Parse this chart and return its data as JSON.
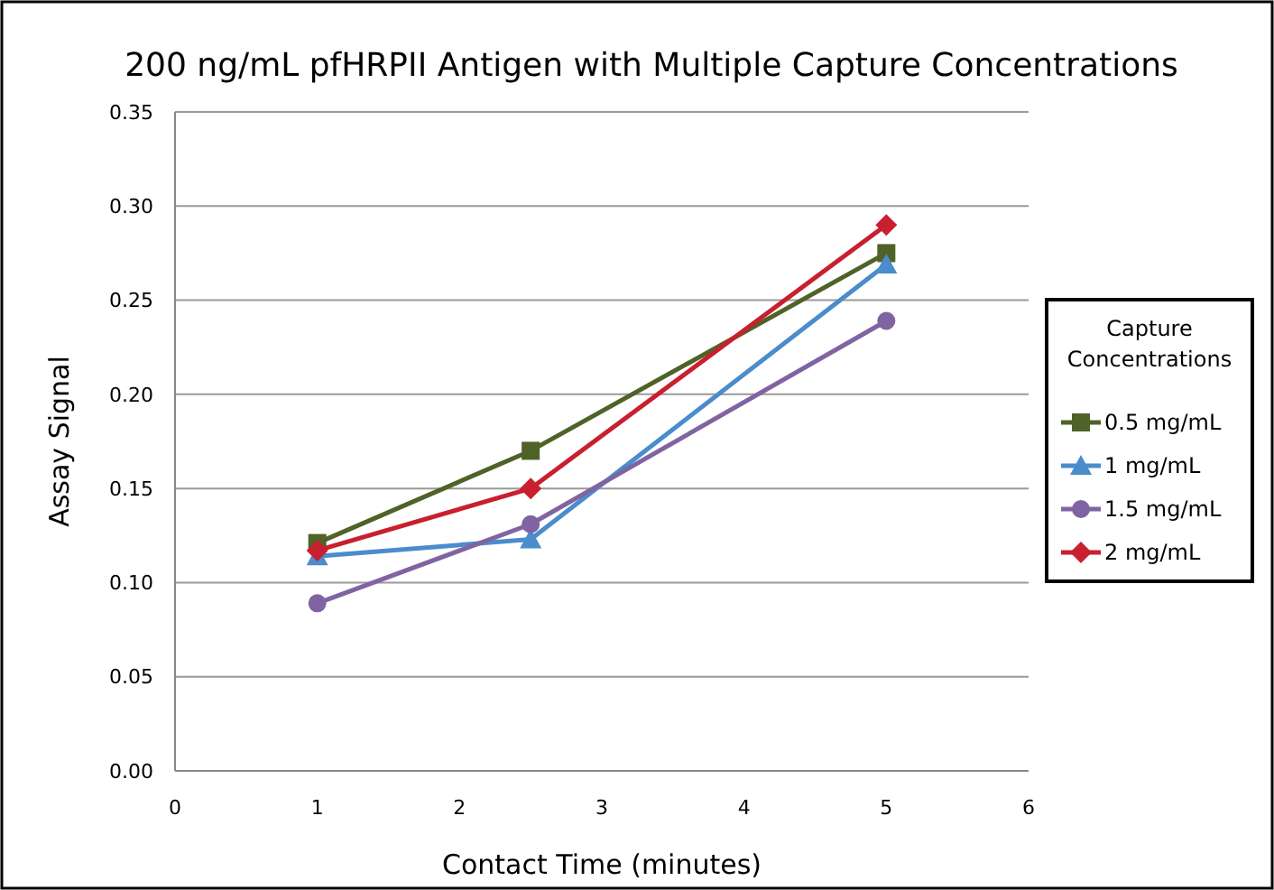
{
  "chart_data": {
    "type": "line",
    "title": "200 ng/mL pfHRPII Antigen with Multiple Capture Concentrations",
    "xlabel": "Contact Time (minutes)",
    "ylabel": "Assay Signal",
    "legend_title": "Capture Concentrations",
    "x": [
      1,
      2.5,
      5
    ],
    "xlim": [
      0,
      6
    ],
    "xticks": [
      0,
      1,
      2,
      3,
      4,
      5,
      6
    ],
    "ylim": [
      0,
      0.35
    ],
    "yticks": [
      {
        "value": 0,
        "label": "0.00"
      },
      {
        "value": 0.05,
        "label": "0.05"
      },
      {
        "value": 0.1,
        "label": "0.10"
      },
      {
        "value": 0.15,
        "label": "0.15"
      },
      {
        "value": 0.2,
        "label": "0.20"
      },
      {
        "value": 0.25,
        "label": "0.25"
      },
      {
        "value": 0.3,
        "label": "0.30"
      },
      {
        "value": 0.35,
        "label": "0.35"
      }
    ],
    "grid": "y",
    "legend": "right",
    "line_style": "solid",
    "series": [
      {
        "name": "0.5 mg/mL",
        "color": "#4f6228",
        "marker": "square",
        "values": [
          0.121,
          0.17,
          0.275
        ]
      },
      {
        "name": "1 mg/mL",
        "color": "#4a8ccc",
        "marker": "triangle",
        "values": [
          0.114,
          0.123,
          0.269
        ]
      },
      {
        "name": "1.5 mg/mL",
        "color": "#8064a2",
        "marker": "circle",
        "values": [
          0.089,
          0.131,
          0.239
        ]
      },
      {
        "name": "2 mg/mL",
        "color": "#c8202e",
        "marker": "diamond",
        "values": [
          0.117,
          0.15,
          0.29
        ]
      }
    ]
  }
}
